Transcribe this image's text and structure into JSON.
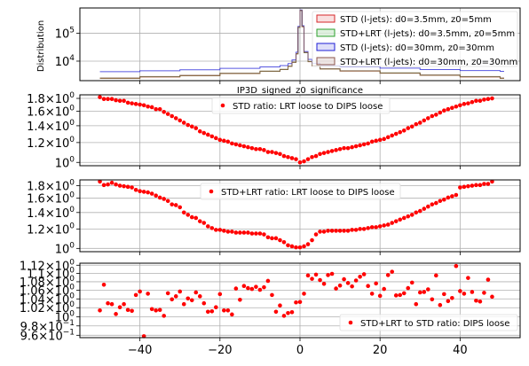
{
  "chart_data": [
    {
      "type": "line",
      "subtype": "step-histogram",
      "title": "",
      "xlabel": "IP3D_signed_z0_significance",
      "ylabel": "Distribution",
      "yscale": "log",
      "xlim": [
        -55,
        55
      ],
      "ylim": [
        2000,
        800000
      ],
      "yticks": [
        {
          "value": 10000,
          "label": "10⁴",
          "base": "10",
          "exp": "4"
        },
        {
          "value": 100000,
          "label": "10⁵",
          "base": "10",
          "exp": "5"
        }
      ],
      "grid": true,
      "legend_position": "top-right",
      "series": [
        {
          "name": "STD (l-jets): d0=3.5mm, z0=5mm",
          "color": "#d62728",
          "x": [
            -50,
            -40,
            -30,
            -20,
            -10,
            -5,
            -3,
            -2,
            -1,
            -0.5,
            0,
            0.5,
            1,
            2,
            3,
            5,
            10,
            20,
            30,
            40,
            50
          ],
          "y": [
            2400,
            2700,
            3000,
            3600,
            4300,
            5000,
            6500,
            9000,
            18000,
            160000,
            650000,
            170000,
            20000,
            9500,
            6800,
            5200,
            4400,
            3700,
            3100,
            2700,
            2400
          ]
        },
        {
          "name": "STD+LRT (l-jets): d0=3.5mm, z0=5mm",
          "color": "#2ca02c",
          "x": [
            -50,
            -40,
            -30,
            -20,
            -10,
            -5,
            -3,
            -2,
            -1,
            -0.5,
            0,
            0.5,
            1,
            2,
            3,
            5,
            10,
            20,
            30,
            40,
            50
          ],
          "y": [
            2450,
            2750,
            3050,
            3650,
            4350,
            5050,
            6550,
            9100,
            18200,
            162000,
            655000,
            172000,
            20200,
            9600,
            6900,
            5250,
            4450,
            3750,
            3150,
            2750,
            2450
          ]
        },
        {
          "name": "STD (l-jets): d0=30mm, z0=30mm",
          "color": "#1f1fd6",
          "x": [
            -50,
            -40,
            -30,
            -20,
            -10,
            -5,
            -3,
            -2,
            -1,
            -0.5,
            0,
            0.5,
            1,
            2,
            3,
            5,
            10,
            20,
            30,
            40,
            50
          ],
          "y": [
            4200,
            4500,
            4900,
            5500,
            6200,
            6900,
            8200,
            11000,
            21000,
            175000,
            680000,
            185000,
            22000,
            11500,
            8400,
            7000,
            6300,
            5600,
            5000,
            4600,
            4300
          ]
        },
        {
          "name": "STD+LRT (l-jets): d0=30mm, z0=30mm",
          "color": "#8c564b",
          "x": [
            -50,
            -40,
            -30,
            -20,
            -10,
            -5,
            -3,
            -2,
            -1,
            -0.5,
            0,
            0.5,
            1,
            2,
            3,
            5,
            10,
            20,
            30,
            40,
            50
          ],
          "y": [
            2500,
            2800,
            3100,
            3700,
            4400,
            5100,
            6600,
            9200,
            18500,
            165000,
            660000,
            174000,
            20500,
            9700,
            7000,
            5300,
            4500,
            3800,
            3200,
            2800,
            2500
          ]
        }
      ]
    },
    {
      "type": "scatter",
      "title": "",
      "xlim": [
        -55,
        55
      ],
      "ylim": [
        0.97,
        1.86
      ],
      "yscale": "log",
      "yticks": [
        {
          "value": 1.0,
          "label": "10⁰",
          "base": "10",
          "exp": "0",
          "mant": ""
        },
        {
          "value": 1.2,
          "label": "1.2×10⁰",
          "base": "10",
          "exp": "0",
          "mant": "1.2"
        },
        {
          "value": 1.4,
          "label": "1.4×10⁰",
          "base": "10",
          "exp": "0",
          "mant": "1.4"
        },
        {
          "value": 1.6,
          "label": "1.6×10⁰",
          "base": "10",
          "exp": "0",
          "mant": "1.6"
        },
        {
          "value": 1.8,
          "label": "1.8×10⁰",
          "base": "10",
          "exp": "0",
          "mant": "1.8"
        }
      ],
      "grid": true,
      "legend_position": "top-center",
      "series": [
        {
          "name": "STD ratio: LRT loose to DIPS loose",
          "color": "#ff0000",
          "x": [
            -50,
            -49,
            -48,
            -47,
            -46,
            -45,
            -44,
            -43,
            -42,
            -41,
            -40,
            -39,
            -38,
            -37,
            -36,
            -35,
            -34,
            -33,
            -32,
            -31,
            -30,
            -29,
            -28,
            -27,
            -26,
            -25,
            -24,
            -23,
            -22,
            -21,
            -20,
            -19,
            -18,
            -17,
            -16,
            -15,
            -14,
            -13,
            -12,
            -11,
            -10,
            -9,
            -8,
            -7,
            -6,
            -5,
            -4,
            -3,
            -2,
            -1,
            0,
            1,
            2,
            3,
            4,
            5,
            6,
            7,
            8,
            9,
            10,
            11,
            12,
            13,
            14,
            15,
            16,
            17,
            18,
            19,
            20,
            21,
            22,
            23,
            24,
            25,
            26,
            27,
            28,
            29,
            30,
            31,
            32,
            33,
            34,
            35,
            36,
            37,
            38,
            39,
            40,
            41,
            42,
            43,
            44,
            45,
            46,
            47,
            48
          ],
          "y": [
            1.82,
            1.79,
            1.79,
            1.79,
            1.77,
            1.76,
            1.76,
            1.73,
            1.72,
            1.71,
            1.7,
            1.69,
            1.67,
            1.66,
            1.63,
            1.63,
            1.59,
            1.56,
            1.53,
            1.5,
            1.47,
            1.44,
            1.41,
            1.39,
            1.37,
            1.33,
            1.31,
            1.29,
            1.27,
            1.25,
            1.23,
            1.22,
            1.21,
            1.19,
            1.18,
            1.17,
            1.16,
            1.15,
            1.14,
            1.13,
            1.13,
            1.12,
            1.1,
            1.1,
            1.09,
            1.08,
            1.06,
            1.05,
            1.04,
            1.03,
            1.0,
            1.01,
            1.03,
            1.05,
            1.06,
            1.08,
            1.09,
            1.1,
            1.11,
            1.12,
            1.13,
            1.14,
            1.14,
            1.15,
            1.16,
            1.17,
            1.18,
            1.19,
            1.21,
            1.22,
            1.23,
            1.24,
            1.26,
            1.28,
            1.3,
            1.32,
            1.34,
            1.37,
            1.39,
            1.42,
            1.44,
            1.47,
            1.5,
            1.53,
            1.55,
            1.58,
            1.61,
            1.63,
            1.65,
            1.67,
            1.69,
            1.71,
            1.72,
            1.74,
            1.76,
            1.76,
            1.78,
            1.79,
            1.8
          ]
        }
      ]
    },
    {
      "type": "scatter",
      "title": "",
      "xlim": [
        -55,
        55
      ],
      "ylim": [
        0.97,
        1.9
      ],
      "yscale": "log",
      "yticks": [
        {
          "value": 1.0,
          "label": "10⁰",
          "base": "10",
          "exp": "0",
          "mant": ""
        },
        {
          "value": 1.2,
          "label": "1.2×10⁰",
          "base": "10",
          "exp": "0",
          "mant": "1.2"
        },
        {
          "value": 1.4,
          "label": "1.4×10⁰",
          "base": "10",
          "exp": "0",
          "mant": "1.4"
        },
        {
          "value": 1.6,
          "label": "1.6×10⁰",
          "base": "10",
          "exp": "0",
          "mant": "1.6"
        },
        {
          "value": 1.8,
          "label": "1.8×10⁰",
          "base": "10",
          "exp": "0",
          "mant": "1.8"
        }
      ],
      "grid": true,
      "legend_position": "top-center",
      "series": [
        {
          "name": "STD+LRT ratio: LRT loose to DIPS loose",
          "color": "#ff0000",
          "x": [
            -50,
            -49,
            -48,
            -47,
            -46,
            -45,
            -44,
            -43,
            -42,
            -41,
            -40,
            -39,
            -38,
            -37,
            -36,
            -35,
            -34,
            -33,
            -32,
            -31,
            -30,
            -29,
            -28,
            -27,
            -26,
            -25,
            -24,
            -23,
            -22,
            -21,
            -20,
            -19,
            -18,
            -17,
            -16,
            -15,
            -14,
            -13,
            -12,
            -11,
            -10,
            -9,
            -8,
            -7,
            -6,
            -5,
            -4,
            -3,
            -2,
            -1,
            0,
            1,
            2,
            3,
            4,
            5,
            6,
            7,
            8,
            9,
            10,
            11,
            12,
            13,
            14,
            15,
            16,
            17,
            18,
            19,
            20,
            21,
            22,
            23,
            24,
            25,
            26,
            27,
            28,
            29,
            30,
            31,
            32,
            33,
            34,
            35,
            36,
            37,
            38,
            39,
            40,
            41,
            42,
            43,
            44,
            45,
            46,
            47,
            48
          ],
          "y": [
            1.87,
            1.81,
            1.82,
            1.85,
            1.82,
            1.8,
            1.79,
            1.78,
            1.77,
            1.73,
            1.71,
            1.7,
            1.69,
            1.67,
            1.64,
            1.61,
            1.59,
            1.56,
            1.51,
            1.5,
            1.47,
            1.4,
            1.37,
            1.34,
            1.33,
            1.29,
            1.27,
            1.23,
            1.21,
            1.19,
            1.19,
            1.18,
            1.17,
            1.17,
            1.16,
            1.16,
            1.16,
            1.16,
            1.15,
            1.15,
            1.15,
            1.14,
            1.11,
            1.1,
            1.1,
            1.08,
            1.06,
            1.03,
            1.02,
            1.01,
            1.01,
            1.02,
            1.04,
            1.08,
            1.14,
            1.17,
            1.17,
            1.18,
            1.18,
            1.18,
            1.18,
            1.18,
            1.18,
            1.19,
            1.19,
            1.2,
            1.2,
            1.21,
            1.22,
            1.22,
            1.23,
            1.24,
            1.25,
            1.27,
            1.29,
            1.31,
            1.33,
            1.35,
            1.37,
            1.4,
            1.42,
            1.45,
            1.48,
            1.51,
            1.53,
            1.56,
            1.58,
            1.61,
            1.63,
            1.65,
            1.77,
            1.78,
            1.79,
            1.8,
            1.81,
            1.81,
            1.83,
            1.83,
            1.87
          ]
        }
      ]
    },
    {
      "type": "scatter",
      "title": "",
      "xlim": [
        -55,
        55
      ],
      "ylim": [
        0.955,
        1.125
      ],
      "yscale": "log",
      "yticks": [
        {
          "value": 0.96,
          "label": "9.6×10⁻¹",
          "base": "10",
          "exp": "−1",
          "mant": "9.6"
        },
        {
          "value": 0.98,
          "label": "9.8×10⁻¹",
          "base": "10",
          "exp": "−1",
          "mant": "9.8"
        },
        {
          "value": 1.0,
          "label": "10⁰",
          "base": "10",
          "exp": "0",
          "mant": ""
        },
        {
          "value": 1.02,
          "label": "1.02×10⁰",
          "base": "10",
          "exp": "0",
          "mant": "1.02"
        },
        {
          "value": 1.04,
          "label": "1.04×10⁰",
          "base": "10",
          "exp": "0",
          "mant": "1.04"
        },
        {
          "value": 1.06,
          "label": "1.06×10⁰",
          "base": "10",
          "exp": "0",
          "mant": "1.06"
        },
        {
          "value": 1.08,
          "label": "1.08×10⁰",
          "base": "10",
          "exp": "0",
          "mant": "1.08"
        },
        {
          "value": 1.1,
          "label": "1.1×10⁰",
          "base": "10",
          "exp": "0",
          "mant": "1.1"
        },
        {
          "value": 1.12,
          "label": "1.12×10⁰",
          "base": "10",
          "exp": "0",
          "mant": "1.12"
        }
      ],
      "xticks": [
        -40,
        -20,
        0,
        20,
        40
      ],
      "xticklabels": [
        "−40",
        "−20",
        "0",
        "20",
        "40"
      ],
      "grid": true,
      "legend_position": "lower-right",
      "series": [
        {
          "name": "STD+LRT to STD ratio: DIPS loose",
          "color": "#ff0000",
          "x": [
            -50,
            -49,
            -48,
            -47,
            -46,
            -45,
            -44,
            -43,
            -42,
            -41,
            -40,
            -39,
            -38,
            -37,
            -36,
            -35,
            -34,
            -33,
            -32,
            -31,
            -30,
            -29,
            -28,
            -27,
            -26,
            -25,
            -24,
            -23,
            -22,
            -21,
            -20,
            -19,
            -18,
            -17,
            -16,
            -15,
            -14,
            -13,
            -12,
            -11,
            -10,
            -9,
            -8,
            -7,
            -6,
            -5,
            -4,
            -3,
            -2,
            -1,
            0,
            1,
            2,
            3,
            4,
            5,
            6,
            7,
            8,
            9,
            10,
            11,
            12,
            13,
            14,
            15,
            16,
            17,
            18,
            19,
            20,
            21,
            22,
            23,
            24,
            25,
            26,
            27,
            28,
            29,
            30,
            31,
            32,
            33,
            34,
            35,
            36,
            37,
            38,
            39,
            40,
            41,
            42,
            43,
            44,
            45,
            46,
            47,
            48
          ],
          "y": [
            1.014,
            1.073,
            1.03,
            1.028,
            1.006,
            1.021,
            1.028,
            1.015,
            1.013,
            1.049,
            1.057,
            0.958,
            1.052,
            1.017,
            1.014,
            1.015,
            1.002,
            1.053,
            1.039,
            1.046,
            1.057,
            1.028,
            1.041,
            1.037,
            1.055,
            1.046,
            1.03,
            1.011,
            1.012,
            1.021,
            1.051,
            1.014,
            1.014,
            1.005,
            1.064,
            1.038,
            1.07,
            1.065,
            1.063,
            1.068,
            1.061,
            1.067,
            1.082,
            1.049,
            1.011,
            1.025,
            1.002,
            1.008,
            1.01,
            1.032,
            1.033,
            1.052,
            1.095,
            1.087,
            1.097,
            1.084,
            1.075,
            1.096,
            1.099,
            1.064,
            1.071,
            1.086,
            1.077,
            1.069,
            1.083,
            1.092,
            1.098,
            1.07,
            1.052,
            1.076,
            1.047,
            1.063,
            1.096,
            1.104,
            1.048,
            1.049,
            1.053,
            1.065,
            1.078,
            1.028,
            1.055,
            1.056,
            1.062,
            1.039,
            1.095,
            1.026,
            1.051,
            1.035,
            1.042,
            1.118,
            1.058,
            1.052,
            1.089,
            1.056,
            1.036,
            1.034,
            1.054,
            1.085,
            1.045
          ]
        }
      ]
    }
  ]
}
